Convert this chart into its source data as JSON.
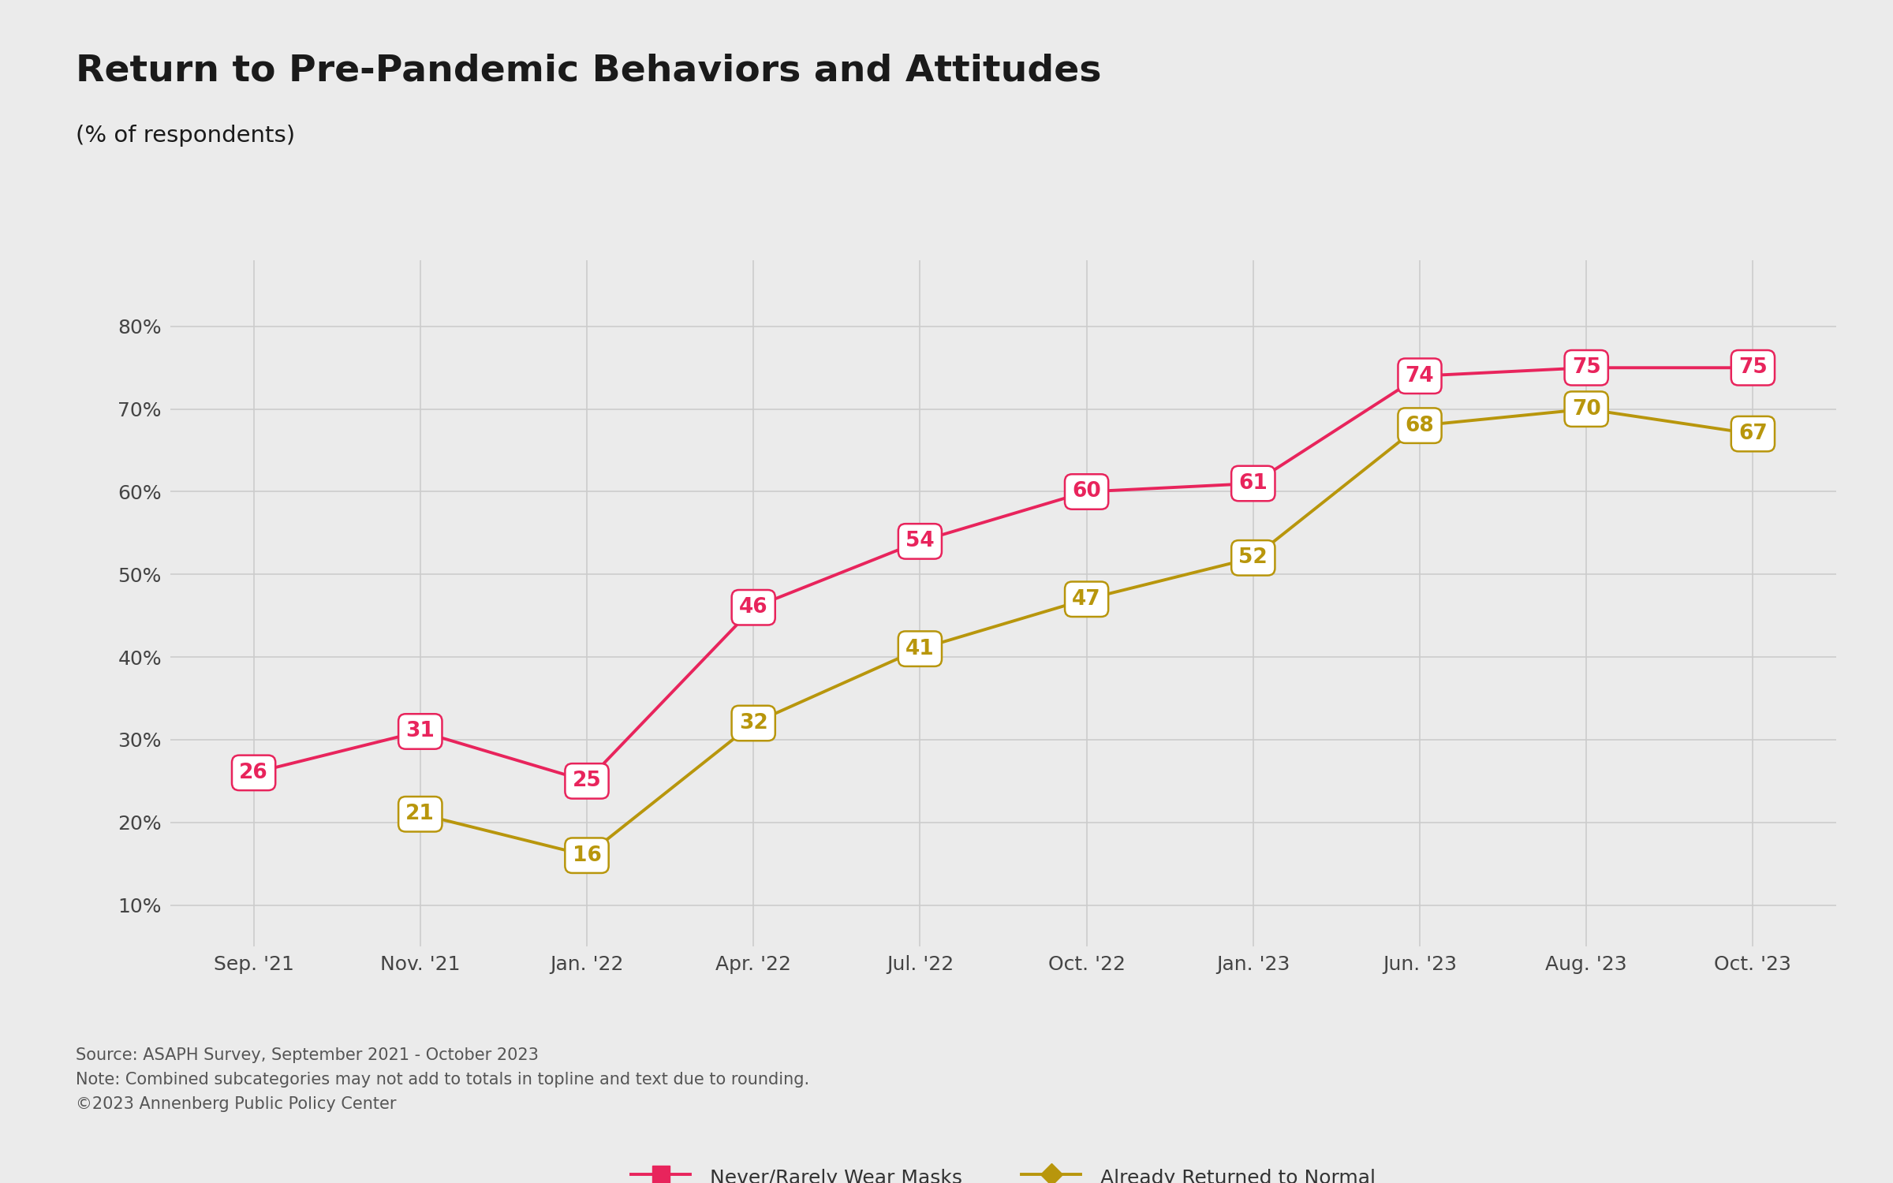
{
  "title": "Return to Pre-Pandemic Behaviors and Attitudes",
  "subtitle": "(% of respondents)",
  "background_color": "#EBEBEB",
  "plot_bg_color": "#E8E8E8",
  "grid_color": "#CCCCCC",
  "x_labels": [
    "Sep. '21",
    "Nov. '21",
    "Jan. '22",
    "Apr. '22",
    "Jul. '22",
    "Oct. '22",
    "Jan. '23",
    "Jun. '23",
    "Aug. '23",
    "Oct. '23"
  ],
  "series1": {
    "name": "Never/Rarely Wear Masks",
    "values": [
      26,
      31,
      25,
      46,
      54,
      60,
      61,
      74,
      75,
      75
    ],
    "color": "#E8245C",
    "marker": "s"
  },
  "series2": {
    "name": "Already Returned to Normal",
    "values": [
      null,
      21,
      16,
      32,
      41,
      47,
      52,
      68,
      70,
      67
    ],
    "color": "#B8960C",
    "marker": "D"
  },
  "ylim": [
    5,
    88
  ],
  "yticks": [
    10,
    20,
    30,
    40,
    50,
    60,
    70,
    80
  ],
  "ytick_labels": [
    "10%",
    "20%",
    "30%",
    "40%",
    "50%",
    "60%",
    "70%",
    "80%"
  ],
  "source_text": "Source: ASAPH Survey, September 2021 - October 2023\nNote: Combined subcategories may not add to totals in topline and text due to rounding.\n©2023 Annenberg Public Policy Center",
  "title_fontsize": 34,
  "subtitle_fontsize": 21,
  "tick_fontsize": 18,
  "annotation_fontsize": 19,
  "source_fontsize": 15,
  "legend_fontsize": 18,
  "linewidth": 2.8,
  "markersize": 0
}
